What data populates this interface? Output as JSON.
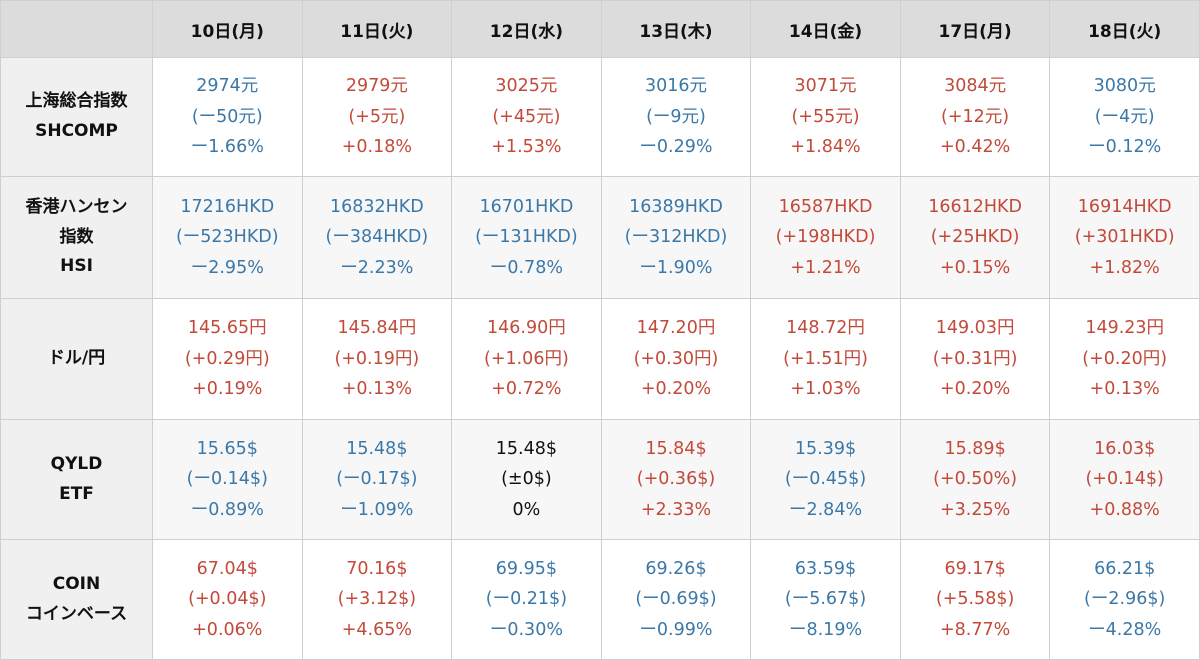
{
  "colors": {
    "up": "#c24a3a",
    "down": "#3b78a8",
    "flat": "#111111"
  },
  "headers": [
    "10日(月)",
    "11日(火)",
    "12日(水)",
    "13日(木)",
    "14日(金)",
    "17日(月)",
    "18日(火)"
  ],
  "rows": [
    {
      "label": [
        "上海総合指数",
        "SHCOMP"
      ],
      "cells": [
        {
          "lines": [
            "2974元",
            "(ー50元)",
            "ー1.66%"
          ],
          "trend": "down"
        },
        {
          "lines": [
            "2979元",
            "(+5元)",
            "+0.18%"
          ],
          "trend": "up"
        },
        {
          "lines": [
            "3025元",
            "(+45元)",
            "+1.53%"
          ],
          "trend": "up"
        },
        {
          "lines": [
            "3016元",
            "(ー9元)",
            "ー0.29%"
          ],
          "trend": "down"
        },
        {
          "lines": [
            "3071元",
            "(+55元)",
            "+1.84%"
          ],
          "trend": "up"
        },
        {
          "lines": [
            "3084元",
            "(+12元)",
            "+0.42%"
          ],
          "trend": "up"
        },
        {
          "lines": [
            "3080元",
            "(ー4元)",
            "ー0.12%"
          ],
          "trend": "down"
        }
      ]
    },
    {
      "label": [
        "香港ハンセン",
        "指数",
        "HSI"
      ],
      "cells": [
        {
          "lines": [
            "17216HKD",
            "(ー523HKD)",
            "ー2.95%"
          ],
          "trend": "down"
        },
        {
          "lines": [
            "16832HKD",
            "(ー384HKD)",
            "ー2.23%"
          ],
          "trend": "down"
        },
        {
          "lines": [
            "16701HKD",
            "(ー131HKD)",
            "ー0.78%"
          ],
          "trend": "down"
        },
        {
          "lines": [
            "16389HKD",
            "(ー312HKD)",
            "ー1.90%"
          ],
          "trend": "down"
        },
        {
          "lines": [
            "16587HKD",
            "(+198HKD)",
            "+1.21%"
          ],
          "trend": "up"
        },
        {
          "lines": [
            "16612HKD",
            "(+25HKD)",
            "+0.15%"
          ],
          "trend": "up"
        },
        {
          "lines": [
            "16914HKD",
            "(+301HKD)",
            "+1.82%"
          ],
          "trend": "up"
        }
      ]
    },
    {
      "label": [
        "ドル/円"
      ],
      "cells": [
        {
          "lines": [
            "145.65円",
            "(+0.29円)",
            "+0.19%"
          ],
          "trend": "up"
        },
        {
          "lines": [
            "145.84円",
            "(+0.19円)",
            "+0.13%"
          ],
          "trend": "up"
        },
        {
          "lines": [
            "146.90円",
            "(+1.06円)",
            "+0.72%"
          ],
          "trend": "up"
        },
        {
          "lines": [
            "147.20円",
            "(+0.30円)",
            "+0.20%"
          ],
          "trend": "up"
        },
        {
          "lines": [
            "148.72円",
            "(+1.51円)",
            "+1.03%"
          ],
          "trend": "up"
        },
        {
          "lines": [
            "149.03円",
            "(+0.31円)",
            "+0.20%"
          ],
          "trend": "up"
        },
        {
          "lines": [
            "149.23円",
            "(+0.20円)",
            "+0.13%"
          ],
          "trend": "up"
        }
      ]
    },
    {
      "label": [
        "QYLD",
        "ETF"
      ],
      "cells": [
        {
          "lines": [
            "15.65$",
            "(ー0.14$)",
            "ー0.89%"
          ],
          "trend": "down"
        },
        {
          "lines": [
            "15.48$",
            "(ー0.17$)",
            "ー1.09%"
          ],
          "trend": "down"
        },
        {
          "lines": [
            "15.48$",
            "(±0$)",
            "0%"
          ],
          "trend": "flat"
        },
        {
          "lines": [
            "15.84$",
            "(+0.36$)",
            "+2.33%"
          ],
          "trend": "up"
        },
        {
          "lines": [
            "15.39$",
            "(ー0.45$)",
            "ー2.84%"
          ],
          "trend": "down"
        },
        {
          "lines": [
            "15.89$",
            "(+0.50%)",
            "+3.25%"
          ],
          "trend": "up"
        },
        {
          "lines": [
            "16.03$",
            "(+0.14$)",
            "+0.88%"
          ],
          "trend": "up"
        }
      ]
    },
    {
      "label": [
        "COIN",
        "コインベース"
      ],
      "cells": [
        {
          "lines": [
            "67.04$",
            "(+0.04$)",
            "+0.06%"
          ],
          "trend": "up"
        },
        {
          "lines": [
            "70.16$",
            "(+3.12$)",
            "+4.65%"
          ],
          "trend": "up"
        },
        {
          "lines": [
            "69.95$",
            "(ー0.21$)",
            "ー0.30%"
          ],
          "trend": "down"
        },
        {
          "lines": [
            "69.26$",
            "(ー0.69$)",
            "ー0.99%"
          ],
          "trend": "down"
        },
        {
          "lines": [
            "63.59$",
            "(ー5.67$)",
            "ー8.19%"
          ],
          "trend": "down"
        },
        {
          "lines": [
            "69.17$",
            "(+5.58$)",
            "+8.77%"
          ],
          "trend": "up"
        },
        {
          "lines": [
            "66.21$",
            "(ー2.96$)",
            "ー4.28%"
          ],
          "trend": "down"
        }
      ]
    }
  ]
}
